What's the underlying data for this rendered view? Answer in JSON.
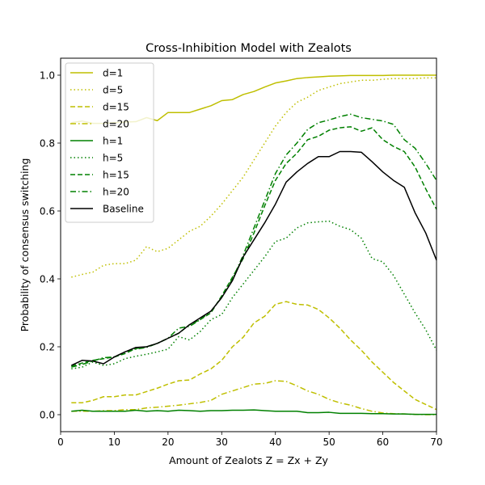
{
  "chart_data": {
    "type": "line",
    "title": "Cross-Inhibition Model with Zealots",
    "xlabel": "Amount of Zealots Z = Zx + Zy",
    "ylabel": "Probability of consensus switching",
    "xlim": [
      0,
      70
    ],
    "ylim": [
      -0.05,
      1.05
    ],
    "xticks": [
      0,
      10,
      20,
      30,
      40,
      50,
      60,
      70
    ],
    "yticks": [
      0.0,
      0.2,
      0.4,
      0.6,
      0.8,
      1.0
    ],
    "xtick_labels": [
      "0",
      "10",
      "20",
      "30",
      "40",
      "50",
      "60",
      "70"
    ],
    "ytick_labels": [
      "0.0",
      "0.2",
      "0.4",
      "0.6",
      "0.8",
      "1.0"
    ],
    "grid": false,
    "legend_position": "top-left",
    "x": [
      2,
      4,
      6,
      8,
      10,
      12,
      14,
      16,
      18,
      20,
      22,
      24,
      26,
      28,
      30,
      32,
      34,
      36,
      38,
      40,
      42,
      44,
      46,
      48,
      50,
      52,
      54,
      56,
      58,
      60,
      62,
      64,
      66,
      68,
      70
    ],
    "series": [
      {
        "name": "d=1",
        "color": "#bfbf00",
        "dash": "solid",
        "values": [
          0.86,
          0.865,
          0.858,
          0.858,
          0.86,
          0.862,
          0.863,
          0.875,
          0.866,
          0.89,
          0.89,
          0.89,
          0.9,
          0.91,
          0.925,
          0.928,
          0.943,
          0.952,
          0.965,
          0.977,
          0.983,
          0.99,
          0.993,
          0.995,
          0.997,
          0.998,
          0.999,
          0.999,
          0.999,
          0.999,
          1.0,
          1.0,
          1.0,
          1.0,
          1.0
        ]
      },
      {
        "name": "d=5",
        "color": "#bfbf00",
        "dash": "dotted",
        "values": [
          0.405,
          0.413,
          0.42,
          0.44,
          0.445,
          0.445,
          0.455,
          0.495,
          0.48,
          0.49,
          0.515,
          0.54,
          0.555,
          0.585,
          0.62,
          0.66,
          0.7,
          0.75,
          0.8,
          0.85,
          0.89,
          0.92,
          0.935,
          0.955,
          0.965,
          0.975,
          0.98,
          0.985,
          0.985,
          0.988,
          0.99,
          0.99,
          0.99,
          0.992,
          0.992
        ]
      },
      {
        "name": "d=15",
        "color": "#bfbf00",
        "dash": "dashed",
        "values": [
          0.035,
          0.035,
          0.042,
          0.053,
          0.053,
          0.058,
          0.058,
          0.068,
          0.078,
          0.09,
          0.1,
          0.102,
          0.12,
          0.135,
          0.16,
          0.2,
          0.228,
          0.27,
          0.29,
          0.325,
          0.333,
          0.325,
          0.323,
          0.31,
          0.285,
          0.255,
          0.22,
          0.19,
          0.155,
          0.125,
          0.095,
          0.07,
          0.045,
          0.03,
          0.015
        ]
      },
      {
        "name": "d=20",
        "color": "#bfbf00",
        "dash": "dashdot",
        "values": [
          0.01,
          0.01,
          0.01,
          0.012,
          0.012,
          0.015,
          0.015,
          0.02,
          0.022,
          0.025,
          0.028,
          0.032,
          0.036,
          0.042,
          0.06,
          0.07,
          0.08,
          0.09,
          0.092,
          0.1,
          0.098,
          0.085,
          0.07,
          0.06,
          0.045,
          0.035,
          0.028,
          0.018,
          0.01,
          0.005,
          0.003,
          0.002,
          0.001,
          0.0,
          0.0
        ]
      },
      {
        "name": "h=1",
        "color": "#008000",
        "dash": "solid",
        "values": [
          0.01,
          0.013,
          0.01,
          0.01,
          0.01,
          0.01,
          0.013,
          0.01,
          0.012,
          0.01,
          0.013,
          0.012,
          0.01,
          0.012,
          0.012,
          0.013,
          0.013,
          0.014,
          0.012,
          0.01,
          0.01,
          0.01,
          0.006,
          0.006,
          0.007,
          0.004,
          0.004,
          0.004,
          0.003,
          0.003,
          0.002,
          0.002,
          0.001,
          0.001,
          0.001
        ]
      },
      {
        "name": "h=5",
        "color": "#008000",
        "dash": "dotted",
        "values": [
          0.135,
          0.14,
          0.155,
          0.145,
          0.15,
          0.165,
          0.172,
          0.178,
          0.185,
          0.193,
          0.23,
          0.22,
          0.245,
          0.28,
          0.295,
          0.345,
          0.385,
          0.425,
          0.465,
          0.51,
          0.52,
          0.55,
          0.565,
          0.568,
          0.57,
          0.555,
          0.545,
          0.52,
          0.46,
          0.45,
          0.41,
          0.355,
          0.3,
          0.25,
          0.19
        ]
      },
      {
        "name": "h=15",
        "color": "#008000",
        "dash": "dashed",
        "values": [
          0.143,
          0.152,
          0.16,
          0.165,
          0.17,
          0.18,
          0.195,
          0.2,
          0.21,
          0.225,
          0.24,
          0.265,
          0.28,
          0.3,
          0.35,
          0.405,
          0.46,
          0.535,
          0.615,
          0.69,
          0.74,
          0.77,
          0.81,
          0.82,
          0.838,
          0.845,
          0.848,
          0.835,
          0.845,
          0.81,
          0.79,
          0.775,
          0.73,
          0.665,
          0.605
        ]
      },
      {
        "name": "h=20",
        "color": "#008000",
        "dash": "dashdot",
        "values": [
          0.14,
          0.148,
          0.158,
          0.168,
          0.17,
          0.185,
          0.193,
          0.198,
          0.21,
          0.225,
          0.255,
          0.26,
          0.28,
          0.305,
          0.345,
          0.4,
          0.47,
          0.55,
          0.63,
          0.71,
          0.765,
          0.8,
          0.84,
          0.86,
          0.868,
          0.878,
          0.885,
          0.875,
          0.87,
          0.865,
          0.855,
          0.81,
          0.785,
          0.74,
          0.69
        ]
      },
      {
        "name": "Baseline",
        "color": "#000000",
        "dash": "solid",
        "values": [
          0.145,
          0.16,
          0.158,
          0.15,
          0.17,
          0.185,
          0.198,
          0.2,
          0.21,
          0.225,
          0.24,
          0.265,
          0.285,
          0.305,
          0.345,
          0.395,
          0.465,
          0.515,
          0.565,
          0.62,
          0.685,
          0.715,
          0.74,
          0.76,
          0.76,
          0.775,
          0.775,
          0.773,
          0.745,
          0.715,
          0.69,
          0.67,
          0.595,
          0.535,
          0.455
        ]
      }
    ]
  }
}
